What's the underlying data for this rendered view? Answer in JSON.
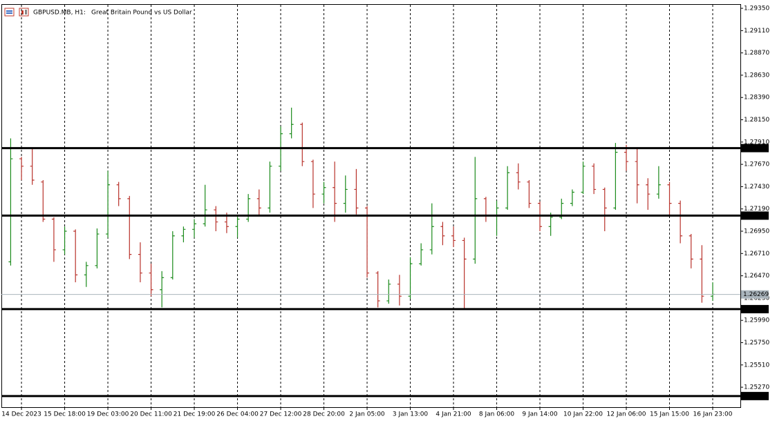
{
  "chart_data": {
    "type": "ohlc",
    "symbol": "GBPUSD.MB, H1:",
    "description": "Great Britain Pound vs US Dollar",
    "up_color": "#1a8a1a",
    "down_color": "#b8312a",
    "grid": true,
    "xlim": [
      -0.86,
      67.56
    ],
    "ylim": [
      1.25055,
      1.29395
    ],
    "xticks": [
      {
        "value": 1,
        "label": "14 Dec 2023"
      },
      {
        "value": 5,
        "label": "15 Dec 18:00"
      },
      {
        "value": 9,
        "label": "19 Dec 03:00"
      },
      {
        "value": 13,
        "label": "20 Dec 11:00"
      },
      {
        "value": 17,
        "label": "21 Dec 19:00"
      },
      {
        "value": 21,
        "label": "26 Dec 04:00"
      },
      {
        "value": 25,
        "label": "27 Dec 12:00"
      },
      {
        "value": 29,
        "label": "28 Dec 20:00"
      },
      {
        "value": 33,
        "label": "2 Jan 05:00"
      },
      {
        "value": 37,
        "label": "3 Jan 13:00"
      },
      {
        "value": 41,
        "label": "4 Jan 21:00"
      },
      {
        "value": 45,
        "label": "8 Jan 06:00"
      },
      {
        "value": 49,
        "label": "9 Jan 14:00"
      },
      {
        "value": 53,
        "label": "10 Jan 22:00"
      },
      {
        "value": 57,
        "label": "12 Jan 06:00"
      },
      {
        "value": 61,
        "label": "15 Jan 15:00"
      },
      {
        "value": 65,
        "label": "16 Jan 23:00"
      }
    ],
    "yticks": [
      {
        "value": 1.2935,
        "label": "1.29350"
      },
      {
        "value": 1.2911,
        "label": "1.29110"
      },
      {
        "value": 1.2887,
        "label": "1.28870"
      },
      {
        "value": 1.2863,
        "label": "1.28630"
      },
      {
        "value": 1.2839,
        "label": "1.28390"
      },
      {
        "value": 1.2815,
        "label": "1.28150"
      },
      {
        "value": 1.2791,
        "label": "1.27910"
      },
      {
        "value": 1.2767,
        "label": "1.27670"
      },
      {
        "value": 1.2743,
        "label": "1.27430"
      },
      {
        "value": 1.2719,
        "label": "1.27190"
      },
      {
        "value": 1.2695,
        "label": "1.26950"
      },
      {
        "value": 1.2671,
        "label": "1.26710"
      },
      {
        "value": 1.2647,
        "label": "1.26470"
      },
      {
        "value": 1.2623,
        "label": "1.26230"
      },
      {
        "value": 1.2599,
        "label": "1.25990"
      },
      {
        "value": 1.2575,
        "label": "1.25750"
      },
      {
        "value": 1.2551,
        "label": "1.25510"
      },
      {
        "value": 1.2527,
        "label": "1.25270"
      }
    ],
    "levels": [
      1.27845,
      1.27118,
      1.26111,
      1.25175
    ],
    "current_price": 1.26269,
    "open": [
      1.2662,
      1.2773,
      1.2765,
      1.2748,
      1.2708,
      1.2675,
      1.2695,
      1.2648,
      1.2658,
      1.2692,
      1.2745,
      1.273,
      1.267,
      1.265,
      1.2632,
      1.2645,
      1.269,
      1.2697,
      1.2703,
      1.2718,
      1.2705,
      1.27,
      1.2708,
      1.273,
      1.272,
      1.2765,
      1.28,
      1.281,
      1.277,
      1.2735,
      1.2742,
      1.2725,
      1.274,
      1.272,
      1.265,
      1.262,
      1.2638,
      1.2625,
      1.266,
      1.2675,
      1.27,
      1.269,
      1.2685,
      1.2665,
      1.273,
      1.2712,
      1.272,
      1.2758,
      1.2748,
      1.2725,
      1.27,
      1.271,
      1.2725,
      1.2737,
      1.2765,
      1.274,
      1.272,
      1.278,
      1.277,
      1.2745,
      1.2735,
      1.2745,
      1.2725,
      1.269,
      1.2665,
      1.2625
    ],
    "high": [
      1.2795,
      1.2775,
      1.2785,
      1.275,
      1.271,
      1.27,
      1.2697,
      1.2662,
      1.2698,
      1.276,
      1.2748,
      1.2733,
      1.2683,
      1.266,
      1.2652,
      1.2695,
      1.27,
      1.2708,
      1.2745,
      1.2722,
      1.2715,
      1.2712,
      1.2735,
      1.274,
      1.277,
      1.2808,
      1.2828,
      1.2812,
      1.2772,
      1.2748,
      1.277,
      1.2755,
      1.2762,
      1.2722,
      1.2652,
      1.2643,
      1.2648,
      1.2667,
      1.2682,
      1.2725,
      1.2705,
      1.27,
      1.2688,
      1.2775,
      1.2732,
      1.2728,
      1.2765,
      1.2768,
      1.275,
      1.2727,
      1.2715,
      1.273,
      1.274,
      1.277,
      1.2768,
      1.2742,
      1.279,
      1.2788,
      1.2785,
      1.2752,
      1.2765,
      1.2748,
      1.2728,
      1.2692,
      1.268,
      1.264
    ],
    "low": [
      1.2658,
      1.275,
      1.2745,
      1.2705,
      1.2662,
      1.267,
      1.264,
      1.2635,
      1.2655,
      1.2688,
      1.2722,
      1.2665,
      1.264,
      1.2625,
      1.2613,
      1.2643,
      1.2683,
      1.2688,
      1.27,
      1.2695,
      1.2693,
      1.2688,
      1.2705,
      1.2712,
      1.2715,
      1.276,
      1.2795,
      1.2765,
      1.272,
      1.2725,
      1.2705,
      1.2715,
      1.2713,
      1.2645,
      1.2613,
      1.2617,
      1.2615,
      1.2622,
      1.2658,
      1.267,
      1.268,
      1.2678,
      1.2611,
      1.266,
      1.2705,
      1.269,
      1.2718,
      1.274,
      1.272,
      1.2695,
      1.269,
      1.2708,
      1.2722,
      1.2735,
      1.2735,
      1.2695,
      1.2718,
      1.276,
      1.2725,
      1.2718,
      1.273,
      1.2712,
      1.2682,
      1.2655,
      1.2618,
      1.262
    ],
    "close": [
      1.2773,
      1.2765,
      1.275,
      1.2708,
      1.2675,
      1.2695,
      1.2648,
      1.2658,
      1.2692,
      1.2745,
      1.273,
      1.267,
      1.265,
      1.2632,
      1.2645,
      1.269,
      1.2697,
      1.2703,
      1.2718,
      1.2705,
      1.27,
      1.2708,
      1.273,
      1.272,
      1.2765,
      1.28,
      1.281,
      1.277,
      1.2735,
      1.2742,
      1.2725,
      1.274,
      1.272,
      1.265,
      1.262,
      1.2638,
      1.2625,
      1.266,
      1.2675,
      1.27,
      1.269,
      1.2685,
      1.2665,
      1.273,
      1.2712,
      1.272,
      1.2758,
      1.2748,
      1.2725,
      1.27,
      1.271,
      1.2725,
      1.2737,
      1.2765,
      1.274,
      1.272,
      1.278,
      1.277,
      1.2745,
      1.2735,
      1.2745,
      1.2725,
      1.269,
      1.2665,
      1.2625,
      1.2627
    ]
  }
}
